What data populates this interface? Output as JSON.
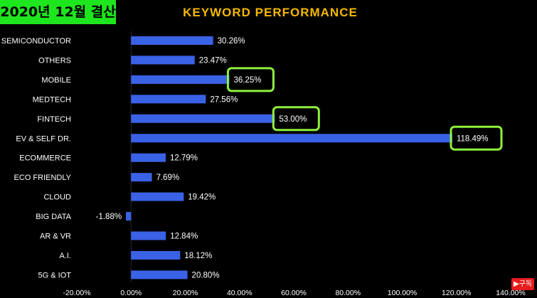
{
  "badge_text": "2020년 12월 결산",
  "subscribe_label": "▶구독",
  "colors": {
    "bar": "#3a62e6",
    "highlight_box": "#8ef03c",
    "title": "#f5b800",
    "badge_bg": "#1ee61e",
    "text": "#ffffff"
  },
  "chart_data": {
    "type": "bar",
    "orientation": "horizontal",
    "title": "KEYWORD PERFORMANCE",
    "categories": [
      "SEMICONDUCTOR",
      "OTHERS",
      "MOBILE",
      "MEDTECH",
      "FINTECH",
      "EV & SELF DR.",
      "ECOMMERCE",
      "ECO FRIENDLY",
      "CLOUD",
      "BIG DATA",
      "AR & VR",
      "A.I.",
      "5G & IOT"
    ],
    "values": [
      30.26,
      23.47,
      36.25,
      27.56,
      53.0,
      118.49,
      12.79,
      7.69,
      19.42,
      -1.88,
      12.84,
      18.12,
      20.8
    ],
    "data_labels": [
      "30.26%",
      "23.47%",
      "36.25%",
      "27.56%",
      "53.00%",
      "118.49%",
      "12.79%",
      "7.69%",
      "19.42%",
      "-1.88%",
      "12.84%",
      "18.12%",
      "20.80%"
    ],
    "highlighted": [
      "MOBILE",
      "FINTECH",
      "EV & SELF DR."
    ],
    "xlim": [
      -20,
      140
    ],
    "xticks": [
      -20,
      0,
      20,
      40,
      60,
      80,
      100,
      120,
      140
    ],
    "xtick_labels": [
      "-20.00%",
      "0.00%",
      "20.00%",
      "40.00%",
      "60.00%",
      "80.00%",
      "100.00%",
      "120.00%",
      "140.00%"
    ],
    "grid": false,
    "legend": "none"
  }
}
